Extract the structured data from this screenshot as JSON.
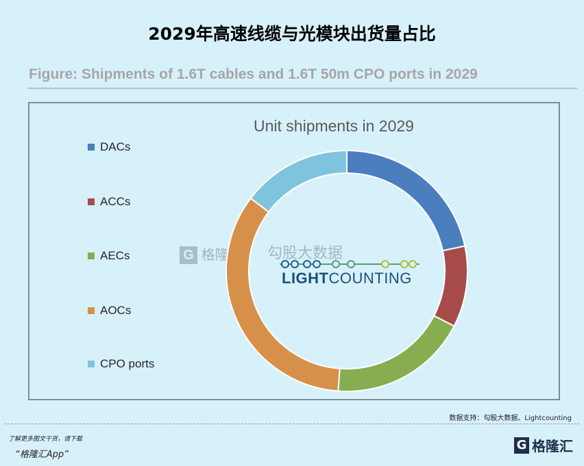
{
  "header": {
    "title": "2029年高速线缆与光模块出货量占比"
  },
  "figure_caption": "Figure: Shipments of 1.6T cables and 1.6T 50m CPO ports in 2029",
  "chart_data": {
    "type": "pie",
    "donut": true,
    "title": "Unit shipments in 2029",
    "legend_position": "left",
    "categories": [
      "DACs",
      "ACCs",
      "AECs",
      "AOCs",
      "CPO ports"
    ],
    "values": [
      21.7,
      10.9,
      18.6,
      34.2,
      14.7
    ],
    "colors": [
      "#4a7ebf",
      "#a74b4a",
      "#86ad4f",
      "#d7904a",
      "#7fc4dd"
    ]
  },
  "watermarks": {
    "gelonghui": "格隆汇",
    "gugu": "勾股大数据",
    "lightcounting_light": "LIGHT",
    "lightcounting_counting": "COUNTING"
  },
  "footer": {
    "source": "数据支持：勾股大数据、Lightcounting",
    "download_line1": "了解更多图文干货，请下载",
    "download_line2": "“格隆汇App”",
    "logo_text": "格隆汇",
    "logo_mark": "G"
  }
}
